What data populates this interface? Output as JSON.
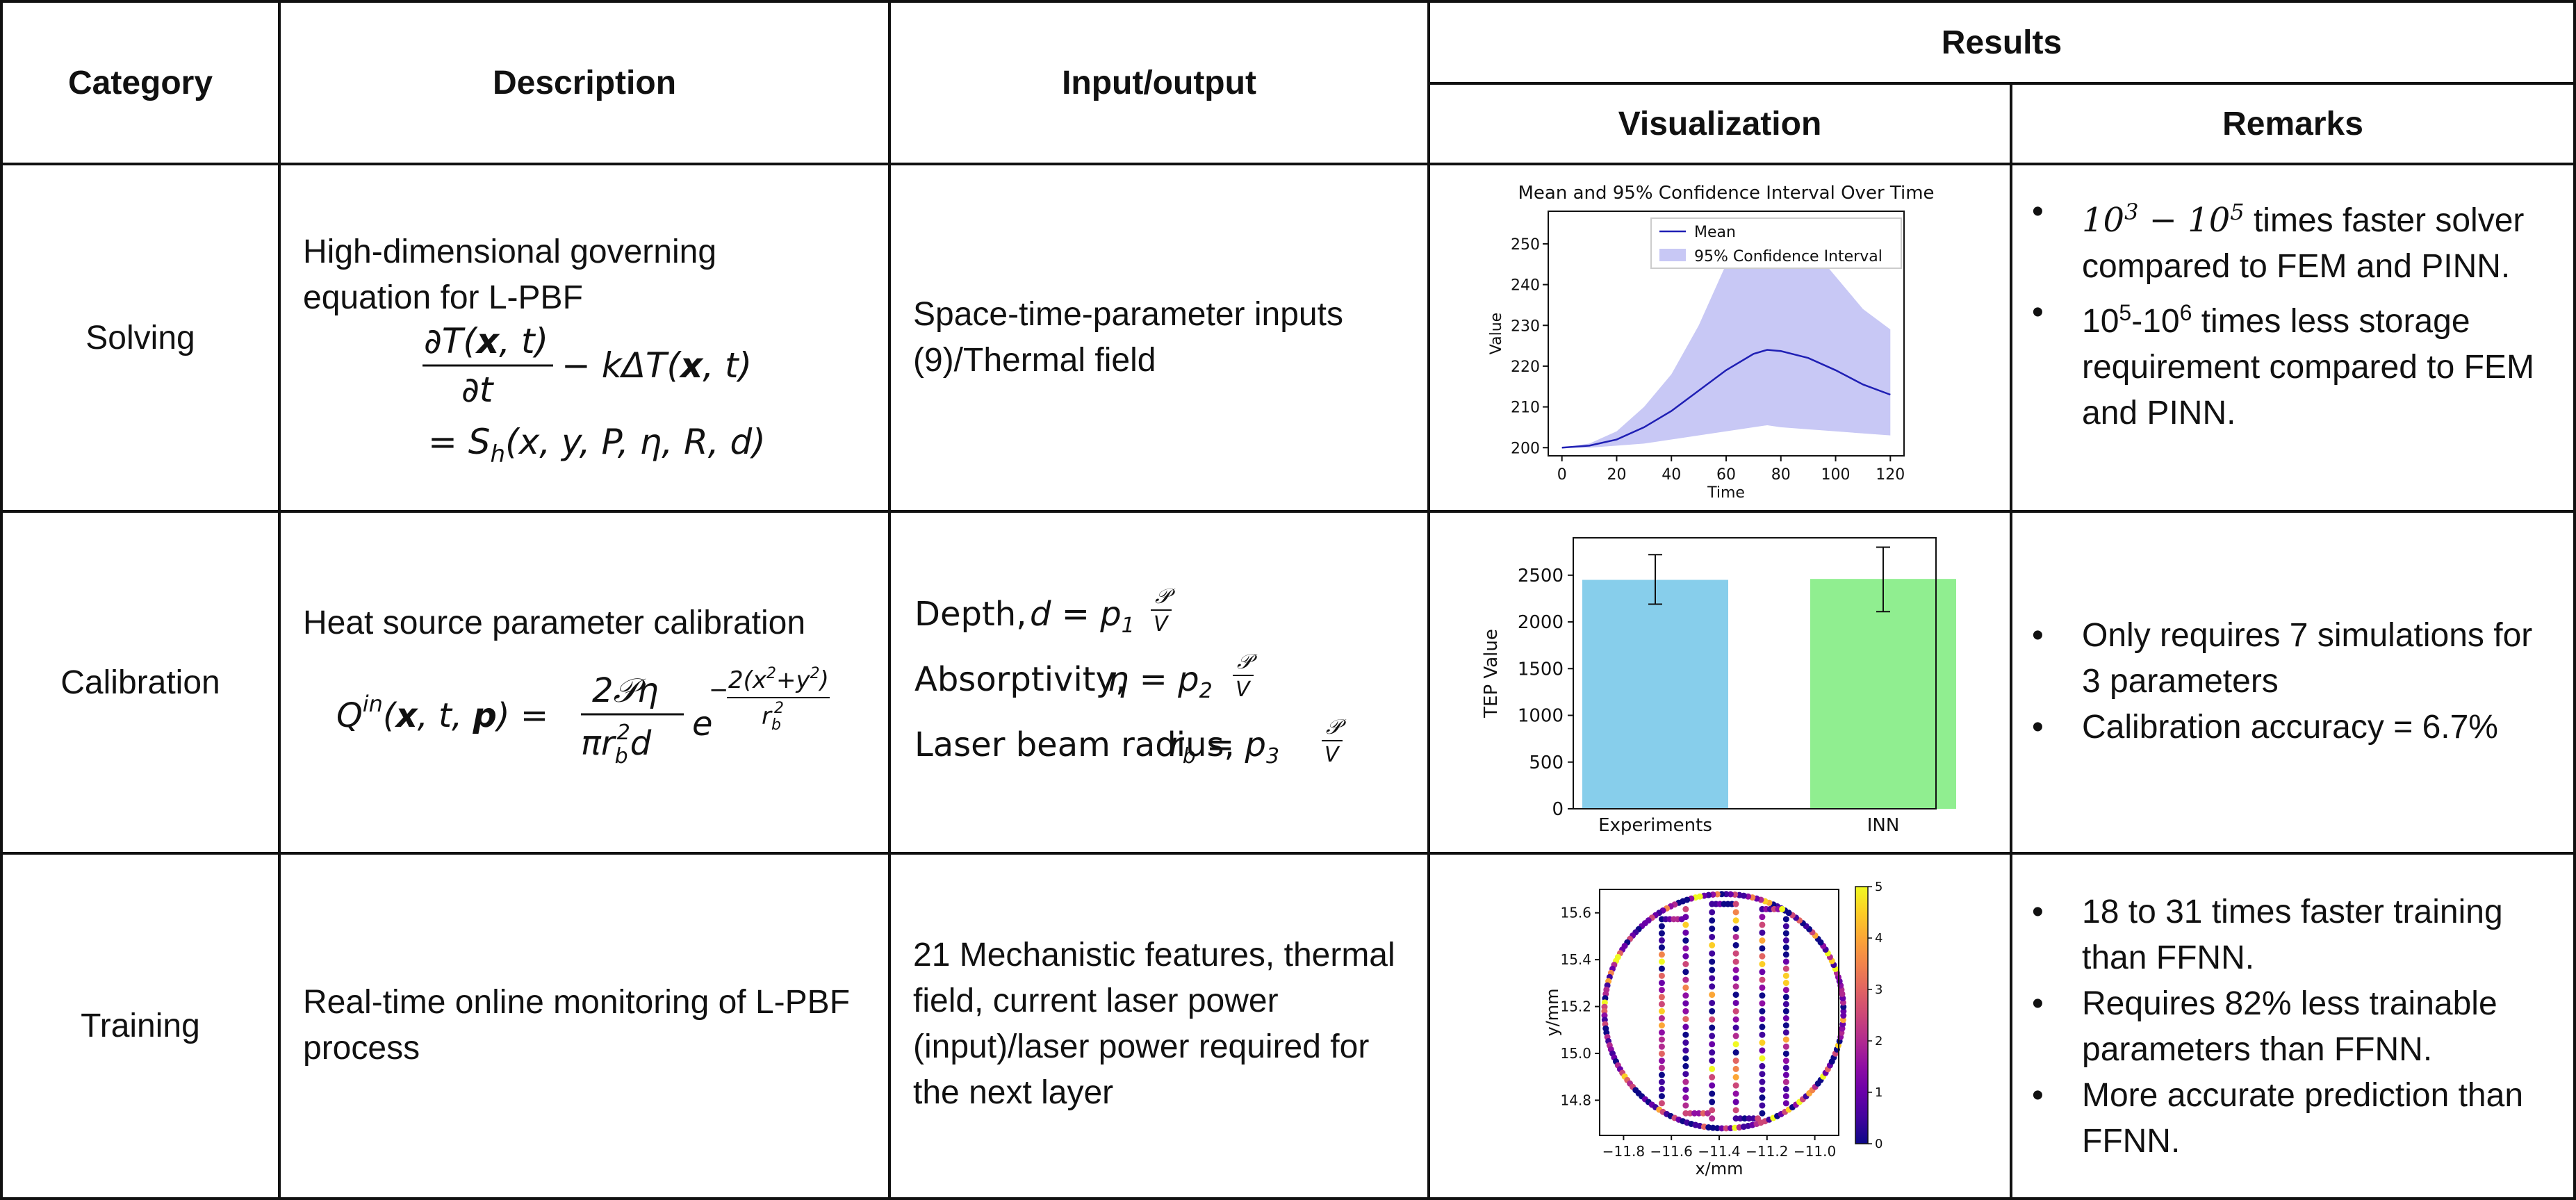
{
  "headers": {
    "category": "Category",
    "description": "Description",
    "input_output": "Input/output",
    "results": "Results",
    "visualization": "Visualization",
    "remarks": "Remarks"
  },
  "rows": [
    {
      "category": "Solving",
      "description": "High-dimensional governing equation for L-PBF",
      "input_output": "Space-time-parameter inputs (9)/Thermal field",
      "remarks": [
        "10^3 – 10^5 times faster solver compared to FEM and PINN.",
        "10^5-10^6 times less storage requirement compared to FEM and PINN."
      ]
    },
    {
      "category": "Calibration",
      "description": "Heat source parameter calibration",
      "input_output": {
        "depth": "Depth,",
        "absorptivity": "Absorptivity,",
        "radius": "Laser beam radius,"
      },
      "remarks": [
        "Only requires 7 simulations for 3 parameters",
        "Calibration accuracy = 6.7%"
      ]
    },
    {
      "category": "Training",
      "description": "Real-time online monitoring of L-PBF process",
      "input_output": "21 Mechanistic features, thermal field, current laser power (input)/laser power required for the next layer",
      "remarks": [
        "18 to 31 times faster training than FFNN.",
        "Requires 82% less trainable parameters than FFNN.",
        "More accurate prediction than FFNN."
      ]
    }
  ],
  "chart_data": [
    {
      "type": "line",
      "title": "Mean and 95% Confidence Interval Over Time",
      "xlabel": "Time",
      "ylabel": "Value",
      "xlim": [
        -5,
        125
      ],
      "ylim": [
        198,
        258
      ],
      "xticks": [
        0,
        20,
        40,
        60,
        80,
        100,
        120
      ],
      "yticks": [
        200,
        210,
        220,
        230,
        240,
        250
      ],
      "legend": [
        "Mean",
        "95% Confidence Interval"
      ],
      "legend_position": "top-right",
      "colors": {
        "mean": "#1f1fb4",
        "band": "#c8c8f5"
      },
      "x": [
        0,
        10,
        20,
        30,
        40,
        50,
        60,
        70,
        75,
        80,
        90,
        100,
        110,
        120
      ],
      "mean": [
        200,
        200.5,
        202,
        205,
        209,
        214,
        219,
        223,
        224,
        223.7,
        222,
        219,
        215.5,
        213
      ],
      "upper": [
        200,
        201,
        204,
        210,
        218,
        230,
        245,
        254,
        256,
        255,
        250,
        242,
        234,
        229
      ],
      "lower": [
        200,
        200,
        200.5,
        201,
        202,
        203,
        204,
        205,
        205.5,
        205,
        204.5,
        204,
        203.5,
        203
      ]
    },
    {
      "type": "bar",
      "categories": [
        "Experiments",
        "INN"
      ],
      "values": [
        2450,
        2460
      ],
      "errors": [
        [
          260,
          270
        ],
        [
          350,
          340
        ]
      ],
      "ylabel": "TEP Value",
      "ylim": [
        0,
        2900
      ],
      "yticks": [
        0,
        500,
        1000,
        1500,
        2000,
        2500
      ],
      "colors": [
        "#87ceeb",
        "#90ee90"
      ]
    },
    {
      "type": "scatter",
      "xlabel": "x/mm",
      "ylabel": "y/mm",
      "xlim": [
        -11.9,
        -10.9
      ],
      "ylim": [
        14.65,
        15.7
      ],
      "xticks": [
        -11.8,
        -11.6,
        -11.4,
        -11.2,
        -11.0
      ],
      "xtick_labels": [
        "−11.8",
        "−11.6",
        "−11.4",
        "−11.2",
        "−11.0"
      ],
      "yticks": [
        14.8,
        15.0,
        15.2,
        15.4,
        15.6
      ],
      "colorbar": {
        "min": 0,
        "max": 5,
        "ticks": [
          0,
          1,
          2,
          3,
          4,
          5
        ],
        "colormap": "plasma"
      },
      "circle": {
        "center": [
          -11.38,
          15.18
        ],
        "radius": 0.5
      },
      "hatch_xs": [
        -11.64,
        -11.54,
        -11.43,
        -11.33,
        -11.22,
        -11.12
      ]
    }
  ]
}
